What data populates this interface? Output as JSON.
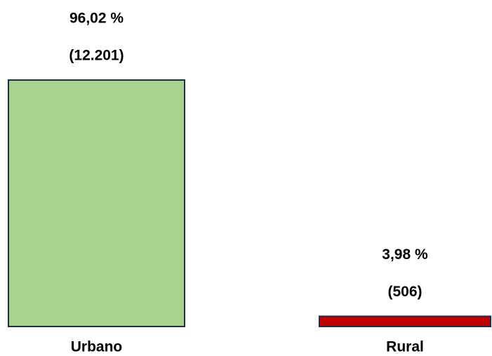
{
  "chart_data": {
    "type": "bar",
    "categories": [
      "Urbano",
      "Rural"
    ],
    "values": [
      96.02,
      3.98
    ],
    "value_labels": [
      "96,02 %",
      "3,98 %"
    ],
    "counts": [
      12201,
      506
    ],
    "count_labels": [
      "(12.201)",
      "(506)"
    ],
    "colors": [
      "#a9d18e",
      "#c00000"
    ]
  }
}
